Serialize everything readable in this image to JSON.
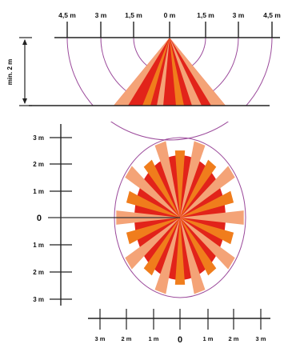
{
  "side_view": {
    "top_scale": [
      "4,5 m",
      "3 m",
      "1,5 m",
      "0 m",
      "1,5 m",
      "3 m",
      "4,5 m"
    ],
    "height_label": "min. 2 m"
  },
  "top_view": {
    "y_scale": [
      "3 m",
      "2 m",
      "1 m",
      "0",
      "1 m",
      "2 m",
      "3 m"
    ],
    "x_scale": [
      "3 m",
      "2 m",
      "1 m",
      "0",
      "1 m",
      "2 m",
      "3 m"
    ]
  },
  "colors": {
    "red": "#e2231a",
    "orange": "#f07d1c",
    "peach": "#f4a377",
    "arc": "#9b4a9b",
    "line": "#222222"
  }
}
